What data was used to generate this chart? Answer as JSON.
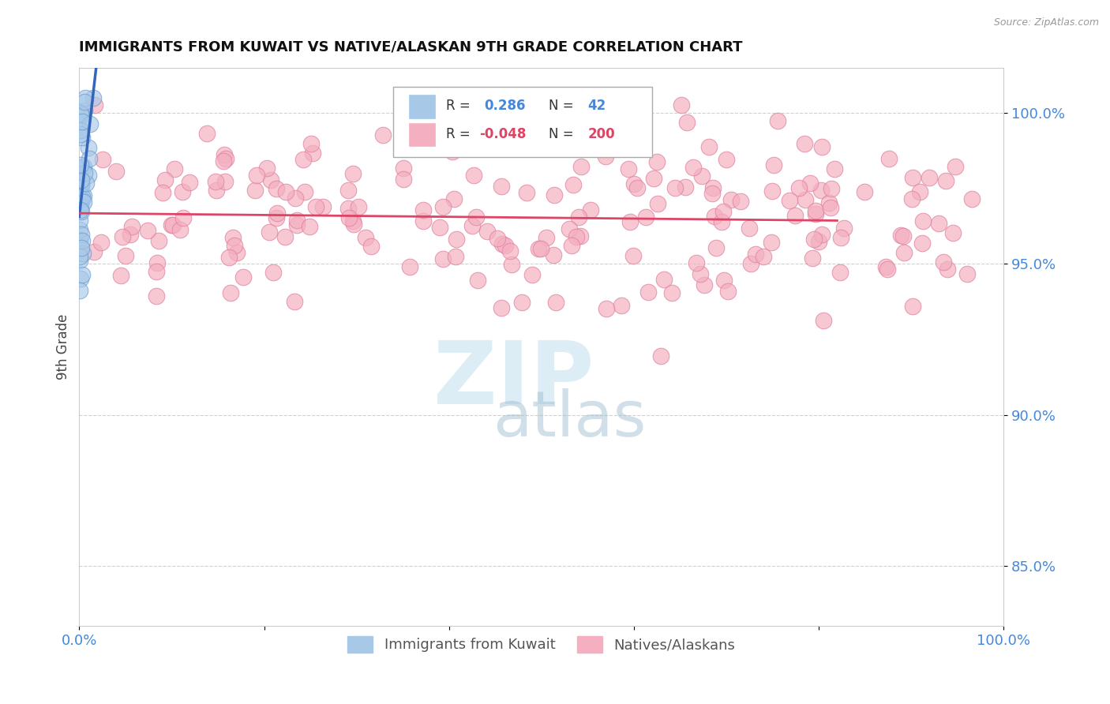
{
  "title": "IMMIGRANTS FROM KUWAIT VS NATIVE/ALASKAN 9TH GRADE CORRELATION CHART",
  "source": "Source: ZipAtlas.com",
  "ylabel": "9th Grade",
  "xlim": [
    0.0,
    100.0
  ],
  "ylim": [
    83.0,
    101.5
  ],
  "yticks": [
    85.0,
    90.0,
    95.0,
    100.0
  ],
  "ytick_labels": [
    "85.0%",
    "90.0%",
    "95.0%",
    "100.0%"
  ],
  "xticks": [
    0.0,
    20.0,
    40.0,
    60.0,
    80.0,
    100.0
  ],
  "xtick_labels": [
    "0.0%",
    "",
    "",
    "",
    "",
    "100.0%"
  ],
  "blue_R": 0.286,
  "blue_N": 42,
  "pink_R": -0.048,
  "pink_N": 200,
  "blue_color": "#a8c8e8",
  "pink_color": "#f4b0c0",
  "blue_line_color": "#3366bb",
  "pink_line_color": "#dd4466",
  "legend_blue_label": "Immigrants from Kuwait",
  "legend_pink_label": "Natives/Alaskans",
  "title_color": "#111111",
  "axis_label_color": "#444444",
  "tick_label_color": "#4488dd",
  "watermark_zip_color": "#bbddee",
  "watermark_atlas_color": "#99bbcc"
}
